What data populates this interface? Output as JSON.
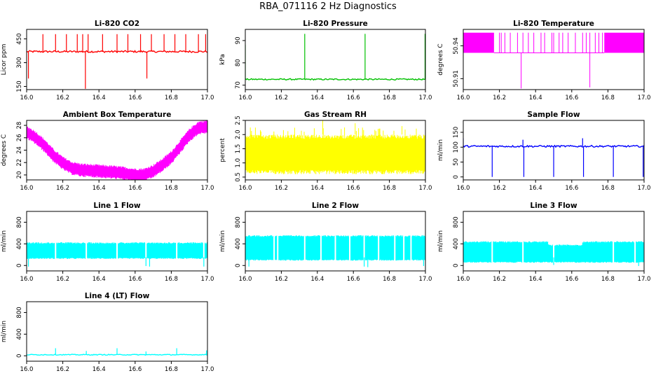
{
  "page_title": "RBA_071116  2 Hz Diagnostics",
  "chart_data": [
    {
      "type": "line",
      "title": "Li-820 CO2",
      "ylabel": "Licor ppm",
      "color": "#ff0000",
      "xlim": [
        16.0,
        17.0
      ],
      "ylim": [
        130,
        510
      ],
      "xticks": [
        "16.0",
        "16.2",
        "16.4",
        "16.6",
        "16.8",
        "17.0"
      ],
      "yticks": [
        {
          "v": 150,
          "l": "150"
        },
        {
          "v": 300,
          "l": "300"
        },
        {
          "v": 450,
          "l": "450"
        }
      ],
      "series": {
        "kind": "flat",
        "base": 370,
        "noise": 6,
        "spikes": [
          {
            "x": 16.01,
            "y": 200
          },
          {
            "x": 16.09,
            "y": 480
          },
          {
            "x": 16.16,
            "y": 480
          },
          {
            "x": 16.22,
            "y": 480
          },
          {
            "x": 16.28,
            "y": 480
          },
          {
            "x": 16.31,
            "y": 480
          },
          {
            "x": 16.325,
            "y": 135
          },
          {
            "x": 16.34,
            "y": 480
          },
          {
            "x": 16.42,
            "y": 480
          },
          {
            "x": 16.5,
            "y": 480
          },
          {
            "x": 16.56,
            "y": 480
          },
          {
            "x": 16.63,
            "y": 480
          },
          {
            "x": 16.665,
            "y": 200
          },
          {
            "x": 16.69,
            "y": 480
          },
          {
            "x": 16.76,
            "y": 480
          },
          {
            "x": 16.82,
            "y": 480
          },
          {
            "x": 16.88,
            "y": 480
          },
          {
            "x": 16.95,
            "y": 480
          },
          {
            "x": 16.99,
            "y": 480
          }
        ]
      }
    },
    {
      "type": "line",
      "title": "Li-820 Pressure",
      "ylabel": "kPa",
      "color": "#00c000",
      "xlim": [
        16.0,
        17.0
      ],
      "ylim": [
        68,
        95
      ],
      "xticks": [
        "16.0",
        "16.2",
        "16.4",
        "16.6",
        "16.8",
        "17.0"
      ],
      "yticks": [
        {
          "v": 70,
          "l": "70"
        },
        {
          "v": 80,
          "l": "80"
        },
        {
          "v": 90,
          "l": "90"
        }
      ],
      "series": {
        "kind": "flat",
        "base": 72.6,
        "noise": 0.3,
        "spikes": [
          {
            "x": 16.0,
            "y": 88
          },
          {
            "x": 16.33,
            "y": 93
          },
          {
            "x": 16.665,
            "y": 93
          },
          {
            "x": 16.998,
            "y": 93
          }
        ]
      }
    },
    {
      "type": "band",
      "title": "Li-820 Temperature",
      "ylabel": "degrees C",
      "color": "#ff00ff",
      "xlim": [
        16.0,
        17.0
      ],
      "ylim": [
        50.9,
        50.955
      ],
      "xticks": [
        "16.0",
        "16.2",
        "16.4",
        "16.6",
        "16.8",
        "17.0"
      ],
      "yticks": [
        {
          "v": 50.91,
          "l": "50.91"
        },
        {
          "v": 50.94,
          "l": "50.94"
        }
      ],
      "series": {
        "low": 50.9336,
        "high": 50.952,
        "dense": [
          [
            16.0,
            16.17
          ],
          [
            16.78,
            17.0
          ]
        ],
        "lines": [
          16.2,
          16.21,
          16.23,
          16.26,
          16.3,
          16.33,
          16.36,
          16.39,
          16.43,
          16.45,
          16.49,
          16.5,
          16.53,
          16.55,
          16.58,
          16.62,
          16.66,
          16.68,
          16.7,
          16.73,
          16.75,
          16.77
        ],
        "dips": [
          {
            "x": 16.32,
            "y": 50.901
          },
          {
            "x": 16.7,
            "y": 50.902
          }
        ]
      }
    },
    {
      "type": "band",
      "title": "Ambient Box Temperature",
      "ylabel": "degrees C",
      "color": "#ff00ff",
      "xlim": [
        16.0,
        17.0
      ],
      "ylim": [
        19.2,
        28.8
      ],
      "xticks": [
        "16.0",
        "16.2",
        "16.4",
        "16.6",
        "16.8",
        "17.0"
      ],
      "yticks": [
        {
          "v": 20,
          "l": "20"
        },
        {
          "v": 22,
          "l": "22"
        },
        {
          "v": 24,
          "l": "24"
        },
        {
          "v": 26,
          "l": "26"
        },
        {
          "v": 28,
          "l": "28"
        }
      ],
      "series": {
        "curve": [
          [
            16.0,
            26.9
          ],
          [
            16.05,
            26.0
          ],
          [
            16.1,
            24.7
          ],
          [
            16.15,
            23.1
          ],
          [
            16.2,
            21.9
          ],
          [
            16.25,
            21.1
          ],
          [
            16.3,
            20.8
          ],
          [
            16.4,
            20.6
          ],
          [
            16.5,
            20.4
          ],
          [
            16.6,
            20.0
          ],
          [
            16.65,
            20.0
          ],
          [
            16.7,
            20.6
          ],
          [
            16.75,
            21.6
          ],
          [
            16.8,
            22.8
          ],
          [
            16.85,
            24.6
          ],
          [
            16.9,
            26.4
          ],
          [
            16.95,
            27.6
          ],
          [
            17.0,
            27.8
          ]
        ],
        "width": 1.5
      }
    },
    {
      "type": "band",
      "title": "Gas Stream RH",
      "ylabel": "percent",
      "color": "#ffff00",
      "xlim": [
        16.0,
        17.0
      ],
      "ylim": [
        0.4,
        2.5
      ],
      "xticks": [
        "16.0",
        "16.2",
        "16.4",
        "16.6",
        "16.8",
        "17.0"
      ],
      "yticks": [
        {
          "v": 0.5,
          "l": "0.5"
        },
        {
          "v": 1.0,
          "l": "1.0"
        },
        {
          "v": 1.5,
          "l": "1.5"
        },
        {
          "v": 2.0,
          "l": "2.0"
        },
        {
          "v": 2.5,
          "l": "2.5"
        }
      ],
      "series": {
        "low": 0.6,
        "high": 2.0,
        "jitter": 0.15,
        "spikes": [
          {
            "x": 16.43,
            "y": 2.5
          },
          {
            "x": 16.61,
            "y": 2.4
          },
          {
            "x": 16.87,
            "y": 2.3
          }
        ]
      }
    },
    {
      "type": "line",
      "title": "Sample Flow",
      "ylabel": "ml/min",
      "color": "#0000ff",
      "xlim": [
        16.0,
        17.0
      ],
      "ylim": [
        -10,
        190
      ],
      "xticks": [
        "16.0",
        "16.2",
        "16.4",
        "16.6",
        "16.8",
        "17.0"
      ],
      "yticks": [
        {
          "v": 0,
          "l": "0"
        },
        {
          "v": 50,
          "l": "50"
        },
        {
          "v": 100,
          "l": "100"
        },
        {
          "v": 150,
          "l": "150"
        }
      ],
      "series": {
        "kind": "flat",
        "base": 103,
        "noise": 3,
        "spikes": [
          {
            "x": 16.0,
            "y": 130
          },
          {
            "x": 16.16,
            "y": 0
          },
          {
            "x": 16.33,
            "y": 125
          },
          {
            "x": 16.335,
            "y": 0
          },
          {
            "x": 16.5,
            "y": 0
          },
          {
            "x": 16.66,
            "y": 130
          },
          {
            "x": 16.665,
            "y": 0
          },
          {
            "x": 16.83,
            "y": 0
          },
          {
            "x": 16.995,
            "y": 0
          }
        ]
      }
    },
    {
      "type": "band",
      "title": "Line 1 Flow",
      "ylabel": "ml/min",
      "color": "#00ffff",
      "xlim": [
        16.0,
        17.0
      ],
      "ylim": [
        -100,
        1000
      ],
      "xticks": [
        "16.0",
        "16.2",
        "16.4",
        "16.6",
        "16.8",
        "17.0"
      ],
      "yticks": [
        {
          "v": 0,
          "l": "0"
        },
        {
          "v": 400,
          "l": "400"
        },
        {
          "v": 800,
          "l": "800"
        }
      ],
      "series": {
        "segments": [
          {
            "x0": 16.0,
            "x1": 17.0,
            "low": 120,
            "high": 430
          }
        ],
        "gaps": [
          16.16,
          16.33,
          16.5,
          16.66,
          16.83,
          16.98
        ],
        "dips": [
          {
            "x": 16.01,
            "y": -20
          },
          {
            "x": 16.66,
            "y": -10
          },
          {
            "x": 16.68,
            "y": -20
          },
          {
            "x": 16.98,
            "y": -20
          }
        ]
      }
    },
    {
      "type": "band",
      "title": "Line 2 Flow",
      "ylabel": "ml/min",
      "color": "#00ffff",
      "xlim": [
        16.0,
        17.0
      ],
      "ylim": [
        -100,
        1000
      ],
      "xticks": [
        "16.0",
        "16.2",
        "16.4",
        "16.6",
        "16.8",
        "17.0"
      ],
      "yticks": [
        {
          "v": 0,
          "l": "0"
        },
        {
          "v": 400,
          "l": "400"
        },
        {
          "v": 800,
          "l": "800"
        }
      ],
      "series": {
        "segments": [
          {
            "x0": 16.0,
            "x1": 17.0,
            "low": 90,
            "high": 560
          }
        ],
        "gaps": [
          16.16,
          16.18,
          16.33,
          16.42,
          16.5,
          16.58,
          16.66,
          16.74,
          16.83,
          16.88,
          16.92
        ],
        "dips": [
          {
            "x": 16.02,
            "y": -20
          },
          {
            "x": 16.66,
            "y": -20
          },
          {
            "x": 16.68,
            "y": -30
          },
          {
            "x": 16.99,
            "y": -10
          }
        ]
      }
    },
    {
      "type": "band",
      "title": "Line 3 Flow",
      "ylabel": "ml/min",
      "color": "#00ffff",
      "xlim": [
        16.0,
        17.0
      ],
      "ylim": [
        -100,
        1000
      ],
      "xticks": [
        "16.0",
        "16.2",
        "16.4",
        "16.6",
        "16.8",
        "17.0"
      ],
      "yticks": [
        {
          "v": 0,
          "l": "0"
        },
        {
          "v": 400,
          "l": "400"
        },
        {
          "v": 800,
          "l": "800"
        }
      ],
      "series": {
        "segments": [
          {
            "x0": 16.0,
            "x1": 16.47,
            "low": 50,
            "high": 450
          },
          {
            "x0": 16.47,
            "x1": 16.66,
            "low": 50,
            "high": 390
          },
          {
            "x0": 16.66,
            "x1": 17.0,
            "low": 50,
            "high": 450
          }
        ],
        "gaps": [
          16.16,
          16.33,
          16.5,
          16.83,
          16.95
        ],
        "dips": [
          {
            "x": 16.5,
            "y": 10
          },
          {
            "x": 16.97,
            "y": -10
          }
        ]
      }
    },
    {
      "type": "line",
      "title": "Line 4 (LT) Flow",
      "ylabel": "ml/min",
      "color": "#00ffff",
      "xlim": [
        16.0,
        17.0
      ],
      "ylim": [
        -100,
        1000
      ],
      "xticks": [
        "16.0",
        "16.2",
        "16.4",
        "16.6",
        "16.8",
        "17.0"
      ],
      "yticks": [
        {
          "v": 0,
          "l": "0"
        },
        {
          "v": 400,
          "l": "400"
        },
        {
          "v": 800,
          "l": "800"
        }
      ],
      "series": {
        "kind": "flat",
        "base": 20,
        "noise": 8,
        "spikes": [
          {
            "x": 16.16,
            "y": 140
          },
          {
            "x": 16.33,
            "y": 90
          },
          {
            "x": 16.5,
            "y": 140
          },
          {
            "x": 16.66,
            "y": 80
          },
          {
            "x": 16.83,
            "y": 140
          },
          {
            "x": 16.995,
            "y": 100
          }
        ]
      }
    }
  ]
}
